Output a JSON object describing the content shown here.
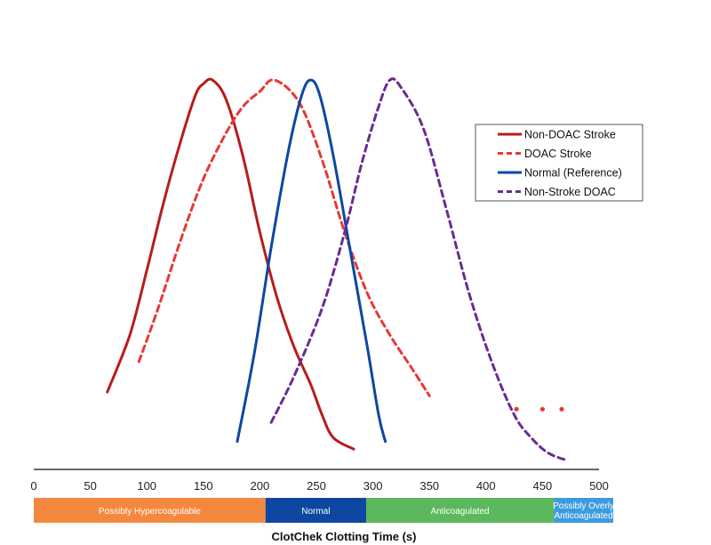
{
  "chart_data": {
    "type": "line",
    "title": "",
    "xlabel": "ClotChek Clotting Time (s)",
    "ylabel": "",
    "xlim": [
      0,
      500
    ],
    "ylim": [
      0,
      1
    ],
    "grid": false,
    "legend_position": "top-right",
    "x_ticks": [
      0,
      50,
      100,
      150,
      200,
      250,
      300,
      350,
      400,
      450,
      500
    ],
    "series": [
      {
        "name": "Non-DOAC Stroke",
        "color": "#b71c1c",
        "style": "solid",
        "points": [
          [
            65,
            0.18
          ],
          [
            85,
            0.33
          ],
          [
            100,
            0.5
          ],
          [
            115,
            0.68
          ],
          [
            130,
            0.84
          ],
          [
            143,
            0.96
          ],
          [
            150,
            0.99
          ],
          [
            158,
            1.0
          ],
          [
            170,
            0.95
          ],
          [
            185,
            0.8
          ],
          [
            200,
            0.6
          ],
          [
            215,
            0.43
          ],
          [
            230,
            0.3
          ],
          [
            245,
            0.2
          ],
          [
            255,
            0.12
          ],
          [
            265,
            0.06
          ],
          [
            283,
            0.03
          ]
        ]
      },
      {
        "name": "DOAC Stroke",
        "color": "#e53935",
        "style": "dashed",
        "points": [
          [
            93,
            0.26
          ],
          [
            110,
            0.4
          ],
          [
            130,
            0.58
          ],
          [
            150,
            0.74
          ],
          [
            170,
            0.86
          ],
          [
            185,
            0.93
          ],
          [
            200,
            0.97
          ],
          [
            213,
            1.0
          ],
          [
            235,
            0.94
          ],
          [
            255,
            0.79
          ],
          [
            275,
            0.6
          ],
          [
            295,
            0.44
          ],
          [
            315,
            0.33
          ],
          [
            335,
            0.24
          ],
          [
            350,
            0.17
          ]
        ]
      },
      {
        "name": "Normal (Reference)",
        "color": "#0d47a1",
        "style": "solid",
        "points": [
          [
            180,
            0.05
          ],
          [
            195,
            0.28
          ],
          [
            210,
            0.56
          ],
          [
            225,
            0.81
          ],
          [
            237,
            0.96
          ],
          [
            245,
            1.0
          ],
          [
            253,
            0.96
          ],
          [
            265,
            0.8
          ],
          [
            280,
            0.55
          ],
          [
            295,
            0.3
          ],
          [
            305,
            0.12
          ],
          [
            311,
            0.05
          ]
        ]
      },
      {
        "name": "Non-Stroke DOAC",
        "color": "#6a2c91",
        "style": "dashed",
        "points": [
          [
            210,
            0.1
          ],
          [
            230,
            0.22
          ],
          [
            255,
            0.4
          ],
          [
            275,
            0.6
          ],
          [
            290,
            0.78
          ],
          [
            305,
            0.93
          ],
          [
            315,
            1.0
          ],
          [
            325,
            0.98
          ],
          [
            345,
            0.87
          ],
          [
            365,
            0.66
          ],
          [
            385,
            0.44
          ],
          [
            405,
            0.26
          ],
          [
            425,
            0.12
          ],
          [
            440,
            0.06
          ],
          [
            455,
            0.02
          ],
          [
            472,
            0.0
          ]
        ]
      }
    ],
    "extra_markers": {
      "color": "#e53935",
      "points": [
        [
          427,
          0.135
        ],
        [
          450,
          0.135
        ],
        [
          467,
          0.135
        ]
      ]
    },
    "ranges": [
      {
        "label": "Possibly Hypercoagulable",
        "from": 0,
        "to": 205,
        "color": "#f5883f"
      },
      {
        "label": "Normal",
        "from": 205,
        "to": 294,
        "color": "#0d47a1"
      },
      {
        "label": "Anticoagulated",
        "from": 294,
        "to": 460,
        "color": "#5cb85c"
      },
      {
        "label": "Possibly Overly Anticoagulated",
        "from": 460,
        "to": 514,
        "color": "#3c9be0"
      }
    ]
  }
}
